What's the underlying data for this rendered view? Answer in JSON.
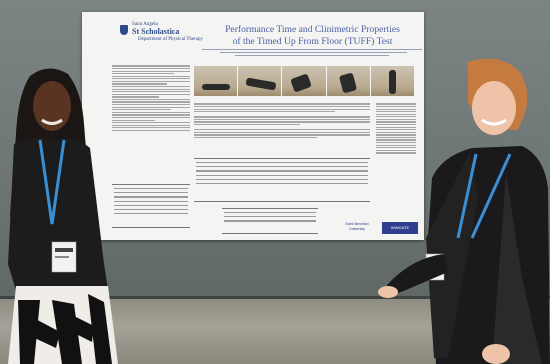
{
  "poster": {
    "institution_top": "Saint Angela",
    "institution_name": "St Scholastica",
    "department": "Department of Physical Therapy",
    "title_line1": "Performance Time and Clinimetric Properties",
    "title_line2": "of the Timed Up From Floor (TUFF) Test",
    "sponsor_1": "Saint Benedict University",
    "sponsor_2": "WINGATE"
  },
  "colors": {
    "title_blue": "#4b5fa4",
    "logo_navy": "#2f3f8f",
    "lanyard_blue": "#3b8fd4"
  }
}
